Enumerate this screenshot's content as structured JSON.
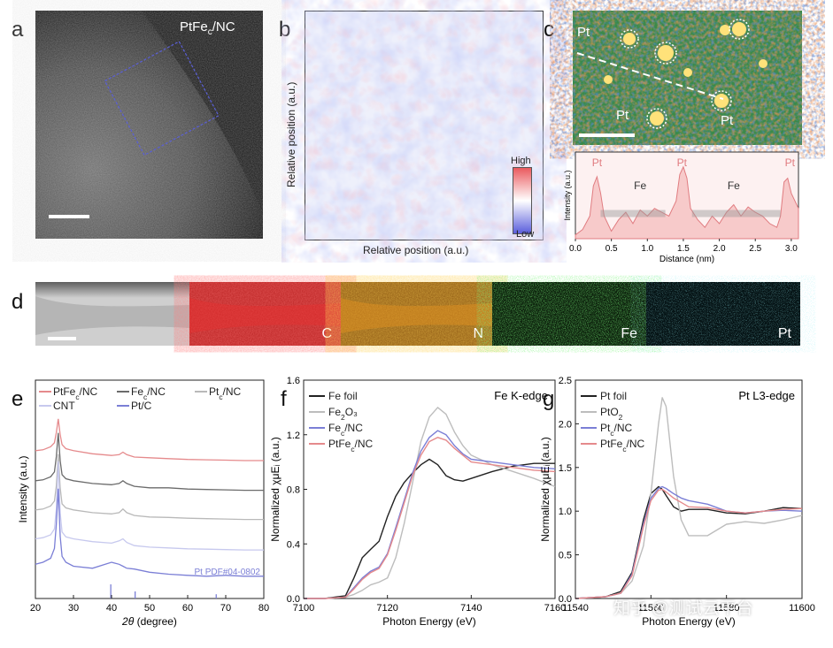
{
  "panels": {
    "a": {
      "letter": "a",
      "label_main": "PtFe",
      "label_sub": "c",
      "label_tail": "/NC"
    },
    "b": {
      "letter": "b",
      "ylabel": "Relative position (a.u.)",
      "xlabel": "Relative position (a.u.)",
      "scale_high": "High",
      "scale_low": "Low"
    },
    "c": {
      "letter": "c",
      "pt_labels": [
        "Pt",
        "Pt",
        "Pt"
      ]
    },
    "d": {
      "letter": "d",
      "maps": [
        "C",
        "N",
        "Fe",
        "Pt"
      ]
    },
    "e": {
      "letter": "e"
    },
    "f": {
      "letter": "f"
    },
    "g": {
      "letter": "g"
    }
  },
  "watermark": "知乎 @测试云平台",
  "colors": {
    "pink": "#e58a8c",
    "gray_dark": "#6b6b6b",
    "gray_light": "#b9b9b9",
    "lavender": "#c7c9ee",
    "blue": "#7b7fd6",
    "black": "#222222"
  },
  "chart_data": [
    {
      "type": "area",
      "panel": "c-profile",
      "xlabel": "Distance (nm)",
      "ylabel": "Intensity (a.u.)",
      "xlim": [
        0.0,
        3.1
      ],
      "xticks": [
        "0.0",
        "0.5",
        "1.0",
        "1.5",
        "2.0",
        "2.5",
        "3.0"
      ],
      "annotations": [
        {
          "text": "Pt",
          "x": 0.3
        },
        {
          "text": "Fe",
          "x": 0.9
        },
        {
          "text": "Pt",
          "x": 1.48
        },
        {
          "text": "Fe",
          "x": 2.2
        },
        {
          "text": "Pt",
          "x": 2.98
        }
      ],
      "x": [
        0.0,
        0.1,
        0.2,
        0.25,
        0.3,
        0.35,
        0.4,
        0.5,
        0.6,
        0.7,
        0.8,
        0.9,
        1.0,
        1.1,
        1.2,
        1.3,
        1.4,
        1.45,
        1.5,
        1.55,
        1.6,
        1.7,
        1.8,
        1.9,
        2.0,
        2.1,
        2.2,
        2.3,
        2.4,
        2.5,
        2.6,
        2.7,
        2.8,
        2.85,
        2.9,
        2.95,
        3.0,
        3.1
      ],
      "y": [
        0.05,
        0.12,
        0.3,
        0.7,
        0.82,
        0.6,
        0.3,
        0.1,
        0.25,
        0.35,
        0.2,
        0.38,
        0.3,
        0.4,
        0.35,
        0.3,
        0.5,
        0.85,
        0.95,
        0.8,
        0.4,
        0.25,
        0.15,
        0.3,
        0.2,
        0.35,
        0.45,
        0.3,
        0.42,
        0.35,
        0.3,
        0.2,
        0.15,
        0.3,
        0.75,
        0.8,
        0.6,
        0.4
      ]
    },
    {
      "type": "line",
      "panel": "e",
      "xlabel": "2θ (degree)",
      "ylabel": "Intensity (a.u.)",
      "xlim": [
        20,
        80
      ],
      "xticks": [
        20,
        30,
        40,
        50,
        60,
        70,
        80
      ],
      "legend": [
        "PtFec/NC",
        "Fec/NC",
        "Ptc/NC",
        "CNT",
        "Pt/C"
      ],
      "reference": {
        "label": "Pt    PDF#04-0802",
        "peaks": [
          39.8,
          46.2,
          67.5
        ],
        "peak_heights": [
          1.0,
          0.5,
          0.3
        ]
      },
      "x": [
        20,
        22,
        24,
        25,
        25.5,
        26,
        26.5,
        27,
        28,
        30,
        35,
        40,
        42,
        43,
        44,
        46,
        50,
        55,
        60,
        65,
        70,
        75,
        80
      ],
      "series": [
        {
          "name": "PtFec/NC",
          "color": "#e58a8c",
          "values": [
            0.4,
            0.42,
            0.5,
            0.6,
            0.85,
            1.2,
            0.8,
            0.55,
            0.45,
            0.4,
            0.32,
            0.28,
            0.3,
            0.36,
            0.3,
            0.24,
            0.22,
            0.2,
            0.18,
            0.17,
            0.16,
            0.15,
            0.15
          ]
        },
        {
          "name": "Fec/NC",
          "color": "#6b6b6b",
          "values": [
            0.4,
            0.42,
            0.5,
            0.62,
            1.0,
            1.6,
            0.9,
            0.55,
            0.45,
            0.4,
            0.33,
            0.3,
            0.33,
            0.4,
            0.33,
            0.26,
            0.22,
            0.22,
            0.19,
            0.18,
            0.17,
            0.16,
            0.16
          ]
        },
        {
          "name": "Ptc/NC",
          "color": "#b9b9b9",
          "values": [
            0.4,
            0.42,
            0.5,
            0.62,
            1.0,
            1.8,
            0.95,
            0.55,
            0.45,
            0.4,
            0.33,
            0.3,
            0.33,
            0.42,
            0.33,
            0.26,
            0.22,
            0.21,
            0.19,
            0.18,
            0.17,
            0.16,
            0.16
          ]
        },
        {
          "name": "CNT",
          "color": "#c7c9ee",
          "values": [
            0.45,
            0.48,
            0.55,
            0.7,
            1.2,
            2.4,
            1.1,
            0.62,
            0.5,
            0.45,
            0.38,
            0.34,
            0.4,
            0.45,
            0.36,
            0.28,
            0.24,
            0.22,
            0.2,
            0.19,
            0.18,
            0.17,
            0.17
          ]
        },
        {
          "name": "Pt/C",
          "color": "#7b7fd6",
          "values": [
            0.5,
            0.55,
            0.65,
            0.9,
            1.5,
            2.4,
            1.2,
            0.7,
            0.55,
            0.45,
            0.4,
            0.55,
            0.5,
            0.45,
            0.4,
            0.38,
            0.3,
            0.25,
            0.22,
            0.2,
            0.22,
            0.2,
            0.2
          ]
        }
      ]
    },
    {
      "type": "line",
      "panel": "f",
      "title": "Fe K-edge",
      "xlabel": "Photon Energy (eV)",
      "ylabel": "Normalized χμEᵢ (a.u.)",
      "xlim": [
        7100,
        7160
      ],
      "ylim": [
        0.0,
        1.6
      ],
      "xticks": [
        7100,
        7120,
        7140,
        7160
      ],
      "yticks": [
        "0.0",
        "0.4",
        "0.8",
        "1.2",
        "1.6"
      ],
      "legend": [
        "Fe foil",
        "Fe2O3",
        "Fec/NC",
        "PtFec/NC"
      ],
      "x": [
        7100,
        7105,
        7110,
        7112,
        7114,
        7116,
        7118,
        7120,
        7122,
        7124,
        7126,
        7128,
        7130,
        7132,
        7134,
        7136,
        7138,
        7140,
        7145,
        7150,
        7155,
        7160
      ],
      "series": [
        {
          "name": "Fe foil",
          "color": "#222222",
          "values": [
            0.0,
            0.0,
            0.02,
            0.15,
            0.3,
            0.36,
            0.42,
            0.6,
            0.75,
            0.85,
            0.92,
            0.98,
            1.02,
            0.98,
            0.9,
            0.87,
            0.86,
            0.88,
            0.93,
            0.97,
            0.99,
            0.99
          ]
        },
        {
          "name": "Fe2O3",
          "color": "#bdbdbd",
          "values": [
            0.0,
            0.0,
            0.01,
            0.03,
            0.06,
            0.1,
            0.12,
            0.15,
            0.3,
            0.55,
            0.85,
            1.15,
            1.33,
            1.4,
            1.35,
            1.22,
            1.12,
            1.05,
            0.98,
            0.93,
            0.88,
            0.82
          ]
        },
        {
          "name": "Fec/NC",
          "color": "#7b7fd6",
          "values": [
            0.0,
            0.0,
            0.01,
            0.08,
            0.15,
            0.2,
            0.23,
            0.33,
            0.52,
            0.72,
            0.92,
            1.08,
            1.18,
            1.23,
            1.2,
            1.12,
            1.06,
            1.02,
            1.0,
            0.98,
            0.96,
            0.95
          ]
        },
        {
          "name": "PtFec/NC",
          "color": "#e58a8c",
          "values": [
            0.0,
            0.0,
            0.01,
            0.07,
            0.14,
            0.19,
            0.22,
            0.32,
            0.5,
            0.7,
            0.9,
            1.05,
            1.15,
            1.18,
            1.16,
            1.1,
            1.05,
            1.0,
            0.98,
            0.96,
            0.94,
            0.93
          ]
        }
      ]
    },
    {
      "type": "line",
      "panel": "g",
      "title": "Pt L3-edge",
      "xlabel": "Photon Energy (eV)",
      "ylabel": "Normalized χμEᵢ (a.u.)",
      "xlim": [
        11540,
        11600
      ],
      "ylim": [
        0.0,
        2.5
      ],
      "xticks": [
        11540,
        11560,
        11580,
        11600
      ],
      "yticks": [
        "0.0",
        "0.5",
        "1.0",
        "1.5",
        "2.0",
        "2.5"
      ],
      "legend": [
        "Pt foil",
        "PtO2",
        "Ptc/NC",
        "PtFec/NC"
      ],
      "x": [
        11540,
        11548,
        11552,
        11555,
        11558,
        11560,
        11562,
        11563,
        11564,
        11566,
        11568,
        11570,
        11575,
        11580,
        11585,
        11590,
        11595,
        11600
      ],
      "series": [
        {
          "name": "Pt foil",
          "color": "#222222",
          "values": [
            0.0,
            0.02,
            0.08,
            0.3,
            0.9,
            1.2,
            1.28,
            1.25,
            1.18,
            1.05,
            1.0,
            1.02,
            1.02,
            0.98,
            0.97,
            1.0,
            1.04,
            1.03
          ]
        },
        {
          "name": "PtO2",
          "color": "#bdbdbd",
          "values": [
            0.0,
            0.02,
            0.06,
            0.2,
            0.6,
            1.2,
            2.0,
            2.3,
            2.2,
            1.4,
            0.9,
            0.72,
            0.72,
            0.85,
            0.88,
            0.86,
            0.9,
            0.95
          ]
        },
        {
          "name": "Ptc/NC",
          "color": "#7b7fd6",
          "values": [
            0.0,
            0.02,
            0.06,
            0.28,
            0.85,
            1.15,
            1.26,
            1.28,
            1.26,
            1.2,
            1.15,
            1.12,
            1.08,
            1.0,
            0.98,
            1.0,
            1.01,
            1.0
          ]
        },
        {
          "name": "PtFec/NC",
          "color": "#e58a8c",
          "values": [
            0.0,
            0.02,
            0.06,
            0.26,
            0.82,
            1.12,
            1.24,
            1.25,
            1.22,
            1.15,
            1.1,
            1.05,
            1.04,
            1.0,
            0.98,
            1.0,
            1.02,
            1.03
          ]
        }
      ]
    }
  ]
}
